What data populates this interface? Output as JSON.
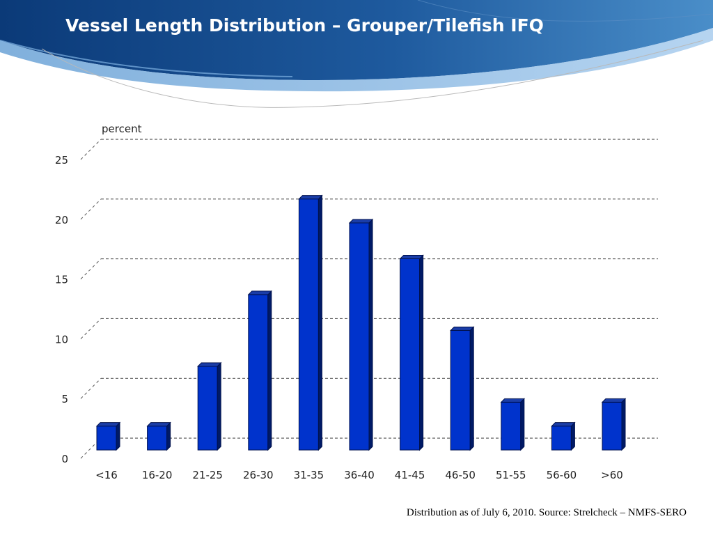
{
  "slide": {
    "title": "Vessel Length Distribution – Grouper/Tilefish IFQ",
    "source_note": "Distribution as of July 6, 2010.  Source: Strelcheck – NMFS-SERO"
  },
  "colors": {
    "banner_dark": "#0c3f80",
    "banner_light": "#3f86c6",
    "bar_front": "#0033cc",
    "bar_side": "#001a66",
    "bar_top": "#1a3da8"
  },
  "chart_data": {
    "type": "bar",
    "title": "",
    "xlabel": "",
    "ylabel": "percent",
    "ylim": [
      0,
      25
    ],
    "yticks": [
      0,
      5,
      10,
      15,
      20,
      25
    ],
    "grid": true,
    "categories": [
      "<16",
      "16-20",
      "21-25",
      "26-30",
      "31-35",
      "36-40",
      "41-45",
      "46-50",
      "51-55",
      "56-60",
      ">60"
    ],
    "values": [
      2,
      2,
      7,
      13,
      21,
      19,
      16,
      10,
      4,
      2,
      4
    ]
  }
}
